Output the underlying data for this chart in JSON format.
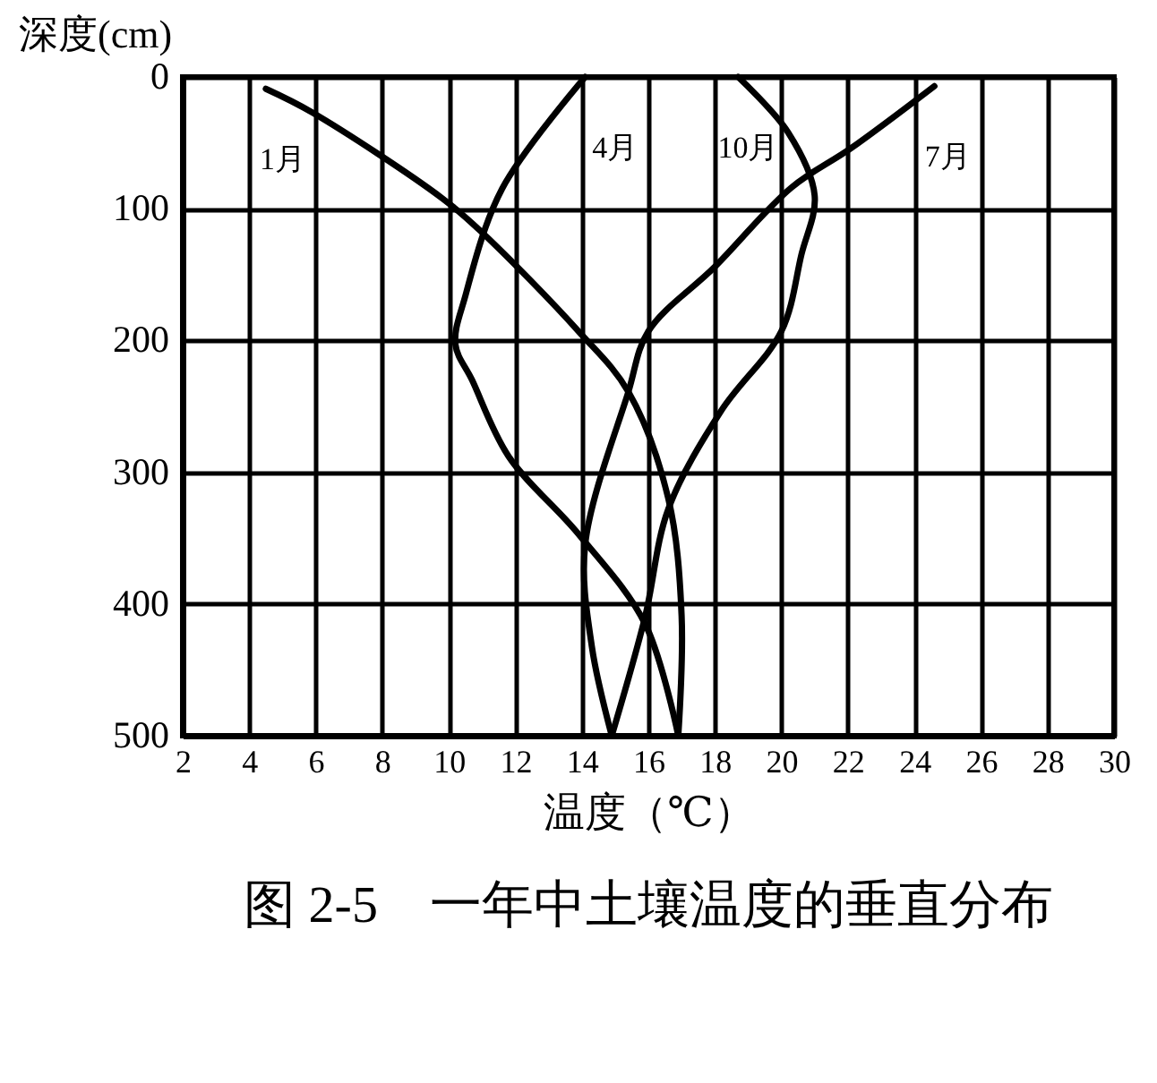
{
  "chart_data": {
    "type": "line",
    "title": "图 2-5　一年中土壤温度的垂直分布",
    "xlabel": "温度（℃）",
    "ylabel": "深度(cm)",
    "xlim": [
      2,
      30
    ],
    "xticks": [
      2,
      4,
      6,
      8,
      10,
      12,
      14,
      16,
      18,
      20,
      22,
      24,
      26,
      28,
      30
    ],
    "ylim": [
      500,
      0
    ],
    "yticks": [
      0,
      100,
      200,
      300,
      400,
      500
    ],
    "grid": true,
    "legend": false,
    "marker": "none",
    "line_style": "solid",
    "series": [
      {
        "name": "1月",
        "color": "#000000",
        "x": [
          4.5,
          5.9,
          9.8,
          11,
          13.9,
          15.4,
          16.6,
          17,
          16.9
        ],
        "values": [
          9,
          27,
          92,
          118,
          193,
          239,
          320,
          409,
          500
        ]
      },
      {
        "name": "4月",
        "color": "#000000",
        "x": [
          14.1,
          11.6,
          10.5,
          10.2,
          10.7,
          11.8,
          13.9,
          15.9,
          16.9
        ],
        "values": [
          0,
          85,
          166,
          203,
          230,
          288,
          347,
          415,
          500
        ]
      },
      {
        "name": "10月",
        "color": "#000000",
        "x": [
          18.7,
          20.2,
          21,
          20.6,
          20,
          18.2,
          16.6,
          15.9,
          14.9
        ],
        "values": [
          0,
          42,
          90,
          135,
          193,
          253,
          328,
          410,
          500
        ]
      },
      {
        "name": "7月",
        "color": "#000000",
        "x": [
          24.6,
          22.1,
          20.3,
          18,
          16,
          15.4,
          14.1,
          14.3,
          14.9
        ],
        "values": [
          7,
          54,
          84,
          144,
          193,
          239,
          355,
          432,
          500
        ]
      }
    ]
  }
}
